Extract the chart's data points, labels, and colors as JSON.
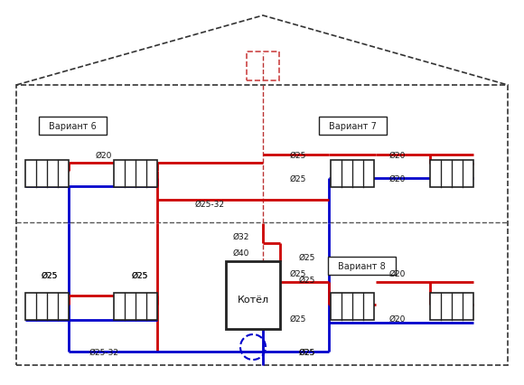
{
  "fig_width": 5.8,
  "fig_height": 4.27,
  "dpi": 100,
  "bg_color": "#ffffff",
  "house_outline_color": "#333333",
  "floor_divider_color": "#555555",
  "red_pipe": "#cc0000",
  "blue_pipe": "#0000cc",
  "radiator_color": "#222222",
  "boiler_color": "#111111",
  "label_color": "#111111",
  "variant_box_color": "#333333",
  "expansion_tank_color": "#0000cc",
  "center_line_color": "#aa2222",
  "labels": {
    "variant6": "Вариант 6",
    "variant7": "Вариант 7",
    "variant8": "Вариант 8",
    "boiler": "Котёл",
    "d20": "Ø20",
    "d25": "Ø25",
    "d32": "Ø32",
    "d40": "Ø40",
    "d2532": "Ø25-32"
  }
}
